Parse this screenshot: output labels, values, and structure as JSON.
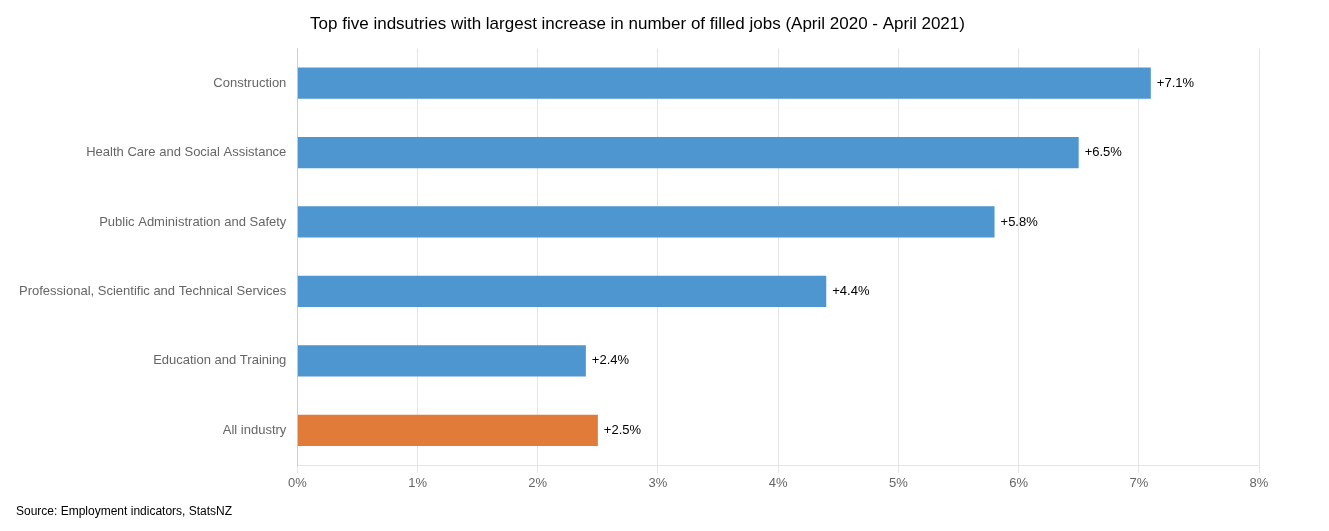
{
  "chart_data": {
    "type": "bar",
    "orientation": "horizontal",
    "title": "Top five indsutries with largest increase in number of filled jobs (April 2020 - April 2021)",
    "categories": [
      "All industry",
      "Education and Training",
      "Professional, Scientific and Technical Services",
      "Public Administration and Safety",
      "Health Care and Social Assistance",
      "Construction"
    ],
    "values": [
      2.5,
      2.4,
      4.4,
      5.8,
      6.5,
      7.1
    ],
    "value_labels": [
      "+2.5%",
      "+2.4%",
      "+4.4%",
      "+5.8%",
      "+6.5%",
      "+7.1%"
    ],
    "data_labels": true,
    "colors": [
      "#e07b39",
      "#4e96d0",
      "#4e96d0",
      "#4e96d0",
      "#4e96d0",
      "#4e96d0"
    ],
    "xlim": [
      0,
      8
    ],
    "xticks": [
      {
        "value": 0,
        "label": "0%"
      },
      {
        "value": 1,
        "label": "1%"
      },
      {
        "value": 2,
        "label": "2%"
      },
      {
        "value": 3,
        "label": "3%"
      },
      {
        "value": 4,
        "label": "4%"
      },
      {
        "value": 5,
        "label": "5%"
      },
      {
        "value": 6,
        "label": "6%"
      },
      {
        "value": 7,
        "label": "7%"
      },
      {
        "value": 8,
        "label": "8%"
      }
    ],
    "grid": true,
    "annotations": [
      "Source: Employment indicators, StatsNZ"
    ]
  }
}
